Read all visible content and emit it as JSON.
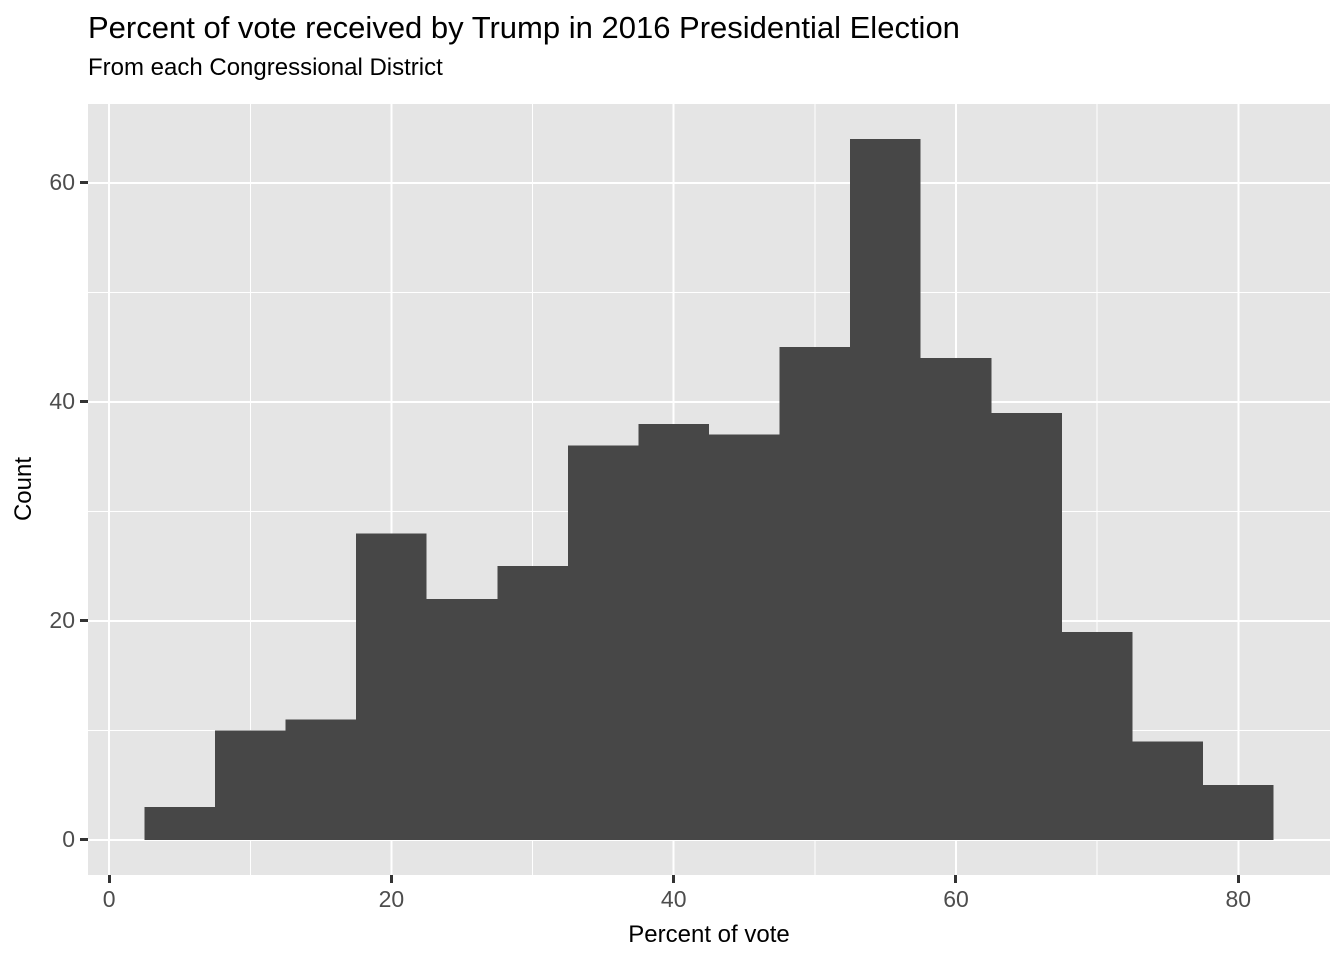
{
  "chart_data": {
    "type": "histogram",
    "title": "Percent of vote received by Trump in 2016 Presidential Election",
    "subtitle": "From each Congressional District",
    "xlabel": "Percent of vote",
    "ylabel": "Count",
    "binwidth": 5,
    "bin_centers": [
      5,
      10,
      15,
      20,
      25,
      30,
      35,
      40,
      45,
      50,
      55,
      60,
      65,
      70,
      75,
      80
    ],
    "counts": [
      3,
      10,
      11,
      28,
      22,
      25,
      36,
      38,
      37,
      45,
      64,
      44,
      39,
      19,
      9,
      5
    ],
    "x_ticks": [
      0,
      20,
      40,
      60,
      80
    ],
    "y_ticks": [
      0,
      20,
      40,
      60
    ],
    "x_minor_gridlines": [
      10,
      30,
      50,
      70
    ],
    "y_minor_gridlines": [
      10,
      30,
      50
    ],
    "xlim": [
      -1.5,
      86.5
    ],
    "ylim": [
      -3.2,
      67.2
    ],
    "grid": "major and minor white gridlines on gray panel",
    "legend": "none",
    "colors": {
      "bar": "#474747",
      "panel": "#E5E5E5",
      "grid": "#FFFFFF",
      "axis_text": "#4D4D4D",
      "tick_mark": "#333333",
      "title_text": "#000000",
      "background": "#FFFFFF"
    }
  }
}
